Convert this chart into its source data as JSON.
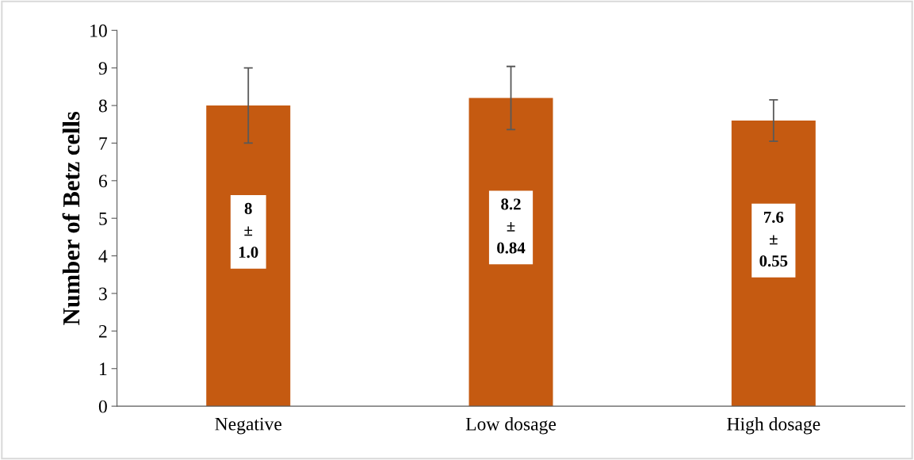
{
  "chart_data": {
    "type": "bar",
    "ylabel": "Number of Betz cells",
    "categories": [
      "Negative",
      "Low dosage",
      "High dosage"
    ],
    "values": [
      8,
      8.2,
      7.6
    ],
    "errors": [
      1.0,
      0.84,
      0.55
    ],
    "value_labels": [
      "8\n±\n1.0",
      "8.2\n±\n0.84",
      "7.6\n±\n0.55"
    ],
    "color": "#c55a11",
    "ylim": [
      0,
      10
    ],
    "yticks": [
      0,
      1,
      2,
      3,
      4,
      5,
      6,
      7,
      8,
      9,
      10
    ],
    "grid": false,
    "legend": false
  }
}
